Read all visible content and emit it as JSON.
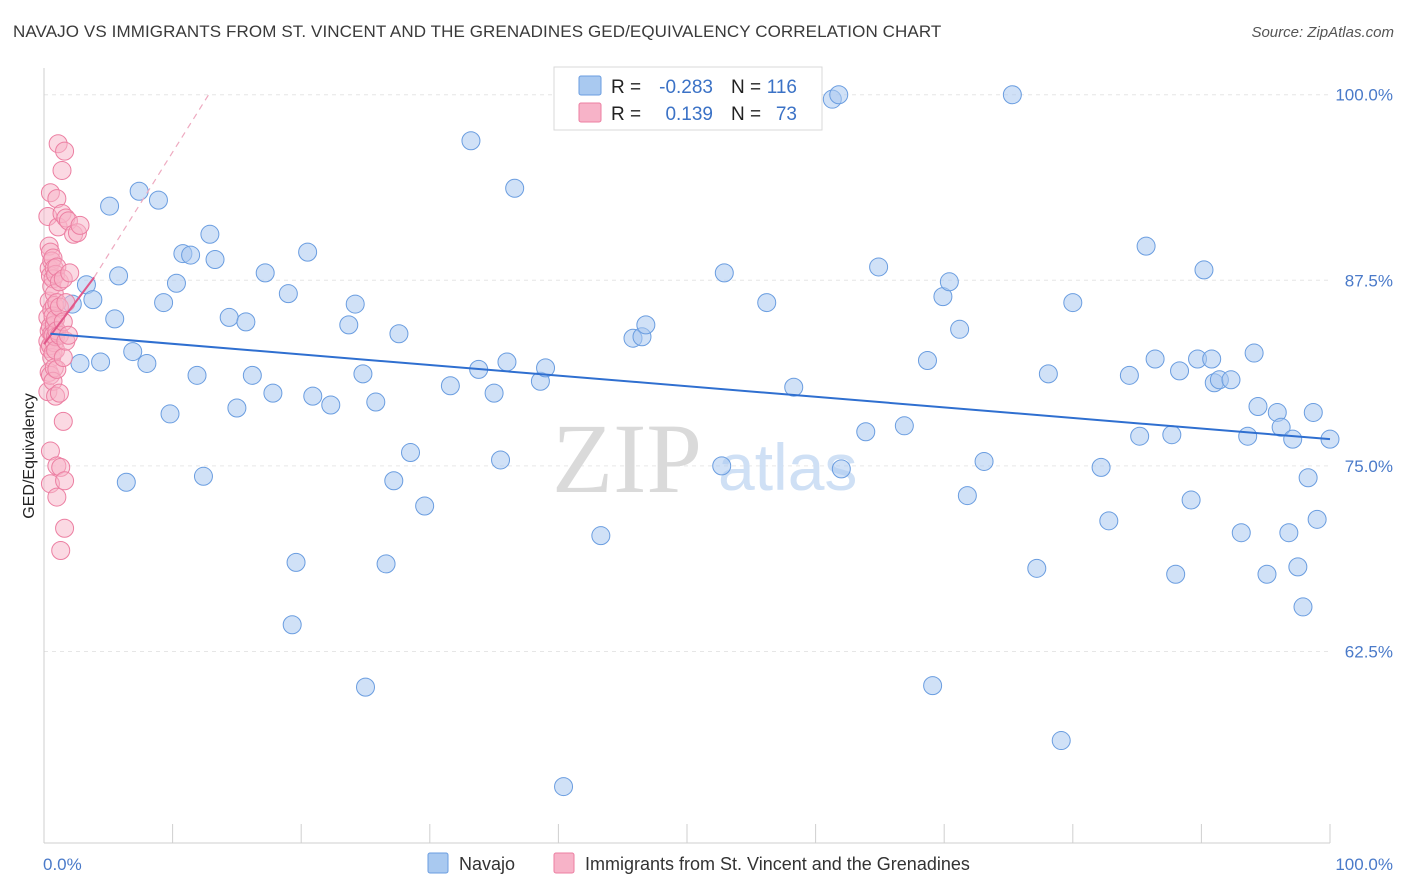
{
  "title": "NAVAJO VS IMMIGRANTS FROM ST. VINCENT AND THE GRENADINES GED/EQUIVALENCY CORRELATION CHART",
  "source": "Source: ZipAtlas.com",
  "watermark": {
    "zip": "ZIP",
    "atlas": "atlas"
  },
  "colors": {
    "navajo_fill": "#a9c9f0",
    "navajo_stroke": "#6a9de0",
    "navajo_line": "#2f6fd0",
    "svg_fill": "#f7b3c8",
    "svg_stroke": "#ec7fa2",
    "svg_line": "#e0588a",
    "tick_label": "#4a7ac9"
  },
  "legend": {
    "r_label": "R =",
    "n_label": "N =",
    "rows": [
      {
        "r": "-0.283",
        "n": "116"
      },
      {
        "r": "0.139",
        "n": "73"
      }
    ]
  },
  "bottom_legend": [
    "Navajo",
    "Immigrants from St. Vincent and the Grenadines"
  ],
  "chart_data": {
    "type": "scatter",
    "title": "NAVAJO VS IMMIGRANTS FROM ST. VINCENT AND THE GRENADINES GED/EQUIVALENCY CORRELATION CHART",
    "xlabel": "",
    "ylabel": "GED/Equivalency",
    "xlim": [
      0,
      100
    ],
    "ylim": [
      49.6,
      101.8
    ],
    "x_tick_labels": [
      "0.0%",
      "100.0%"
    ],
    "y_tick_values": [
      62.5,
      75.0,
      87.5,
      100.0
    ],
    "y_tick_labels": [
      "62.5%",
      "75.0%",
      "87.5%",
      "100.0%"
    ],
    "grid": true,
    "legend_position": "top-center",
    "series": [
      {
        "name": "Navajo",
        "r": -0.283,
        "n": 116,
        "trend": {
          "x": [
            0.5,
            100
          ],
          "y": [
            83.9,
            76.8
          ]
        },
        "points": [
          [
            0.8,
            84.1
          ],
          [
            2.2,
            85.9
          ],
          [
            2.8,
            81.9
          ],
          [
            3.3,
            87.2
          ],
          [
            3.8,
            86.2
          ],
          [
            4.4,
            82.0
          ],
          [
            5.1,
            92.5
          ],
          [
            5.5,
            84.9
          ],
          [
            5.8,
            87.8
          ],
          [
            6.4,
            73.9
          ],
          [
            6.9,
            82.7
          ],
          [
            7.4,
            93.5
          ],
          [
            8.0,
            81.9
          ],
          [
            8.9,
            92.9
          ],
          [
            9.3,
            86.0
          ],
          [
            9.8,
            78.5
          ],
          [
            10.3,
            87.3
          ],
          [
            10.8,
            89.3
          ],
          [
            11.4,
            89.2
          ],
          [
            11.9,
            81.1
          ],
          [
            12.4,
            74.3
          ],
          [
            12.9,
            90.6
          ],
          [
            13.3,
            88.9
          ],
          [
            14.4,
            85.0
          ],
          [
            15.0,
            78.9
          ],
          [
            15.7,
            84.7
          ],
          [
            16.2,
            81.1
          ],
          [
            17.2,
            88.0
          ],
          [
            17.8,
            79.9
          ],
          [
            19.0,
            86.6
          ],
          [
            19.3,
            64.3
          ],
          [
            19.6,
            68.5
          ],
          [
            20.5,
            89.4
          ],
          [
            20.9,
            79.7
          ],
          [
            22.3,
            79.1
          ],
          [
            23.7,
            84.5
          ],
          [
            24.2,
            85.9
          ],
          [
            24.8,
            81.2
          ],
          [
            25.0,
            60.1
          ],
          [
            25.8,
            79.3
          ],
          [
            26.6,
            68.4
          ],
          [
            27.2,
            74.0
          ],
          [
            27.6,
            83.9
          ],
          [
            28.5,
            75.9
          ],
          [
            29.6,
            72.3
          ],
          [
            31.6,
            80.4
          ],
          [
            33.2,
            96.9
          ],
          [
            33.8,
            81.5
          ],
          [
            35.0,
            79.9
          ],
          [
            35.5,
            75.4
          ],
          [
            36.0,
            82.0
          ],
          [
            36.6,
            93.7
          ],
          [
            38.6,
            80.7
          ],
          [
            39.0,
            81.6
          ],
          [
            40.4,
            53.4
          ],
          [
            43.3,
            70.3
          ],
          [
            45.8,
            83.6
          ],
          [
            46.5,
            83.7
          ],
          [
            46.8,
            84.5
          ],
          [
            52.7,
            75.0
          ],
          [
            52.9,
            88.0
          ],
          [
            54.0,
            100.0
          ],
          [
            56.2,
            86.0
          ],
          [
            58.3,
            80.3
          ],
          [
            61.3,
            99.7
          ],
          [
            61.8,
            100.0
          ],
          [
            62.0,
            74.8
          ],
          [
            63.9,
            77.3
          ],
          [
            64.9,
            88.4
          ],
          [
            66.9,
            77.7
          ],
          [
            68.7,
            82.1
          ],
          [
            69.1,
            60.2
          ],
          [
            69.9,
            86.4
          ],
          [
            70.4,
            87.4
          ],
          [
            71.2,
            84.2
          ],
          [
            71.8,
            73.0
          ],
          [
            73.1,
            75.3
          ],
          [
            75.3,
            100.0
          ],
          [
            77.2,
            68.1
          ],
          [
            78.1,
            81.2
          ],
          [
            79.1,
            56.5
          ],
          [
            80.0,
            86.0
          ],
          [
            82.2,
            74.9
          ],
          [
            82.8,
            71.3
          ],
          [
            84.4,
            81.1
          ],
          [
            85.2,
            77.0
          ],
          [
            85.7,
            89.8
          ],
          [
            86.4,
            82.2
          ],
          [
            87.7,
            77.1
          ],
          [
            88.0,
            67.7
          ],
          [
            88.3,
            81.4
          ],
          [
            89.2,
            72.7
          ],
          [
            89.7,
            82.2
          ],
          [
            90.2,
            88.2
          ],
          [
            90.8,
            82.2
          ],
          [
            91.0,
            80.6
          ],
          [
            91.4,
            80.8
          ],
          [
            92.3,
            80.8
          ],
          [
            93.1,
            70.5
          ],
          [
            93.6,
            77.0
          ],
          [
            94.1,
            82.6
          ],
          [
            94.4,
            79.0
          ],
          [
            95.1,
            67.7
          ],
          [
            95.9,
            78.6
          ],
          [
            96.2,
            77.6
          ],
          [
            96.8,
            70.5
          ],
          [
            97.1,
            76.8
          ],
          [
            97.5,
            68.2
          ],
          [
            97.9,
            65.5
          ],
          [
            98.3,
            74.2
          ],
          [
            98.7,
            78.6
          ],
          [
            99.0,
            71.4
          ],
          [
            100.0,
            76.8
          ]
        ]
      },
      {
        "name": "Immigrants from St. Vincent and the Grenadines",
        "r": 0.139,
        "n": 73,
        "trend": {
          "x": [
            0.0,
            3.9
          ],
          "y": [
            83.2,
            87.7
          ]
        },
        "trend_dashed": {
          "x": [
            3.9,
            12.8
          ],
          "y": [
            87.7,
            100.0
          ]
        },
        "points": [
          [
            0.3,
            91.8
          ],
          [
            0.4,
            89.8
          ],
          [
            0.4,
            88.3
          ],
          [
            0.4,
            86.1
          ],
          [
            0.3,
            85.0
          ],
          [
            0.4,
            84.1
          ],
          [
            0.3,
            83.4
          ],
          [
            0.4,
            82.9
          ],
          [
            0.4,
            81.3
          ],
          [
            0.3,
            80.0
          ],
          [
            0.5,
            93.4
          ],
          [
            0.5,
            89.4
          ],
          [
            0.6,
            88.8
          ],
          [
            0.5,
            87.8
          ],
          [
            0.6,
            87.1
          ],
          [
            0.6,
            85.5
          ],
          [
            0.5,
            84.4
          ],
          [
            0.6,
            83.9
          ],
          [
            0.5,
            83.1
          ],
          [
            0.6,
            82.3
          ],
          [
            0.5,
            81.1
          ],
          [
            0.5,
            76.0
          ],
          [
            0.5,
            73.8
          ],
          [
            0.7,
            89.0
          ],
          [
            0.8,
            88.3
          ],
          [
            0.7,
            87.6
          ],
          [
            0.8,
            86.6
          ],
          [
            0.8,
            85.8
          ],
          [
            0.7,
            85.1
          ],
          [
            0.8,
            84.5
          ],
          [
            0.7,
            83.8
          ],
          [
            0.8,
            83.3
          ],
          [
            0.7,
            82.6
          ],
          [
            0.8,
            81.6
          ],
          [
            0.7,
            80.7
          ],
          [
            0.9,
            87.9
          ],
          [
            0.9,
            84.9
          ],
          [
            0.9,
            83.7
          ],
          [
            0.9,
            82.8
          ],
          [
            0.9,
            79.7
          ],
          [
            1.0,
            93.0
          ],
          [
            1.0,
            88.4
          ],
          [
            1.0,
            86.0
          ],
          [
            1.0,
            84.1
          ],
          [
            1.0,
            81.5
          ],
          [
            1.0,
            75.0
          ],
          [
            1.0,
            72.9
          ],
          [
            1.1,
            96.7
          ],
          [
            1.1,
            91.1
          ],
          [
            1.2,
            87.4
          ],
          [
            1.2,
            85.7
          ],
          [
            1.2,
            83.8
          ],
          [
            1.2,
            79.9
          ],
          [
            1.3,
            74.9
          ],
          [
            1.3,
            69.3
          ],
          [
            1.4,
            94.9
          ],
          [
            1.4,
            92.0
          ],
          [
            1.5,
            87.6
          ],
          [
            1.5,
            84.7
          ],
          [
            1.5,
            82.3
          ],
          [
            1.5,
            78.0
          ],
          [
            1.6,
            74.0
          ],
          [
            1.6,
            70.8
          ],
          [
            1.6,
            96.2
          ],
          [
            1.7,
            91.7
          ],
          [
            1.7,
            86.0
          ],
          [
            1.7,
            83.4
          ],
          [
            1.9,
            91.5
          ],
          [
            1.9,
            83.8
          ],
          [
            2.0,
            88.0
          ],
          [
            2.3,
            90.6
          ],
          [
            2.6,
            90.7
          ],
          [
            2.8,
            91.2
          ]
        ]
      }
    ]
  }
}
